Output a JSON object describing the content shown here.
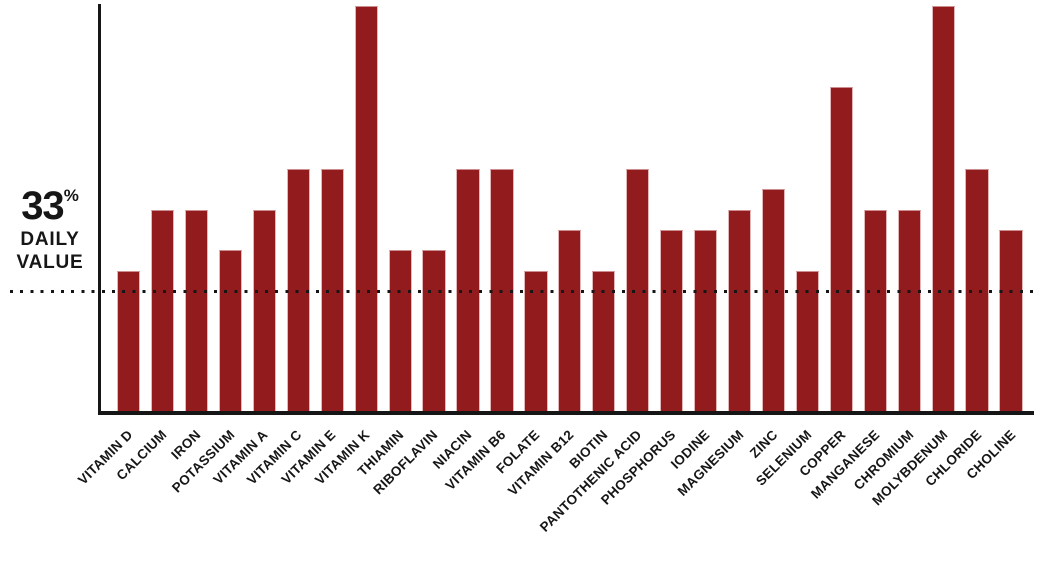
{
  "colors": {
    "bar": "#911b1d",
    "bar_edge_highlight": "#eeD2d2",
    "axis": "#161616",
    "text": "#161616",
    "background": "#ffffff"
  },
  "reference_label": {
    "number": "33",
    "percent_sign": "%",
    "line1": "DAILY",
    "line2": "VALUE"
  },
  "chart_data": {
    "type": "bar",
    "title": "",
    "xlabel": "",
    "ylabel": "% Daily Value",
    "ylim": [
      0,
      112
    ],
    "grid": false,
    "legend": false,
    "bar_color": "#911b1d",
    "reference_line": {
      "value": 33,
      "style": "dotted",
      "label": "33% DAILY VALUE"
    },
    "categories": [
      "VITAMIN D",
      "CALCIUM",
      "IRON",
      "POTASSIUM",
      "VITAMIN A",
      "VITAMIN C",
      "VITAMIN E",
      "VITAMIN K",
      "THIAMIN",
      "RIBOFLAVIN",
      "NIACIN",
      "VITAMIN B6",
      "FOLATE",
      "VITAMIN B12",
      "BIOTIN",
      "PANTOTHENIC ACID",
      "PHOSPHORUS",
      "IODINE",
      "MAGNESIUM",
      "ZINC",
      "SELENIUM",
      "COPPER",
      "MANGANESE",
      "CHROMIUM",
      "MOLYBDENUM",
      "CHLORIDE",
      "CHOLINE"
    ],
    "values": [
      38.5,
      55,
      55,
      44,
      55,
      66,
      66,
      110,
      44,
      44,
      66,
      66,
      38.5,
      49.5,
      38.5,
      66,
      49.5,
      49.5,
      55,
      60.5,
      38.5,
      88,
      55,
      55,
      110,
      66,
      49.5
    ]
  }
}
